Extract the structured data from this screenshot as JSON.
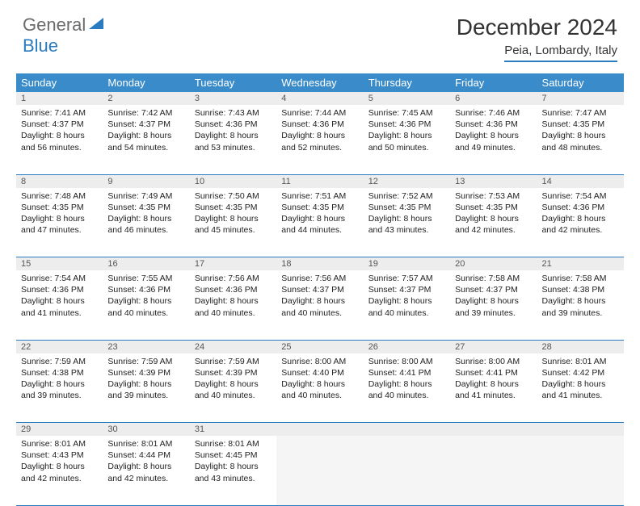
{
  "logo": {
    "text1": "General",
    "text2": "Blue"
  },
  "title": "December 2024",
  "location": "Peia, Lombardy, Italy",
  "colors": {
    "header_bg": "#3a8bc9",
    "accent": "#2a7bbf",
    "daynum_bg": "#ededed",
    "logo_gray": "#6b6b6b"
  },
  "day_headers": [
    "Sunday",
    "Monday",
    "Tuesday",
    "Wednesday",
    "Thursday",
    "Friday",
    "Saturday"
  ],
  "weeks": [
    [
      {
        "n": "1",
        "sr": "7:41 AM",
        "ss": "4:37 PM",
        "dl": "8 hours and 56 minutes."
      },
      {
        "n": "2",
        "sr": "7:42 AM",
        "ss": "4:37 PM",
        "dl": "8 hours and 54 minutes."
      },
      {
        "n": "3",
        "sr": "7:43 AM",
        "ss": "4:36 PM",
        "dl": "8 hours and 53 minutes."
      },
      {
        "n": "4",
        "sr": "7:44 AM",
        "ss": "4:36 PM",
        "dl": "8 hours and 52 minutes."
      },
      {
        "n": "5",
        "sr": "7:45 AM",
        "ss": "4:36 PM",
        "dl": "8 hours and 50 minutes."
      },
      {
        "n": "6",
        "sr": "7:46 AM",
        "ss": "4:36 PM",
        "dl": "8 hours and 49 minutes."
      },
      {
        "n": "7",
        "sr": "7:47 AM",
        "ss": "4:35 PM",
        "dl": "8 hours and 48 minutes."
      }
    ],
    [
      {
        "n": "8",
        "sr": "7:48 AM",
        "ss": "4:35 PM",
        "dl": "8 hours and 47 minutes."
      },
      {
        "n": "9",
        "sr": "7:49 AM",
        "ss": "4:35 PM",
        "dl": "8 hours and 46 minutes."
      },
      {
        "n": "10",
        "sr": "7:50 AM",
        "ss": "4:35 PM",
        "dl": "8 hours and 45 minutes."
      },
      {
        "n": "11",
        "sr": "7:51 AM",
        "ss": "4:35 PM",
        "dl": "8 hours and 44 minutes."
      },
      {
        "n": "12",
        "sr": "7:52 AM",
        "ss": "4:35 PM",
        "dl": "8 hours and 43 minutes."
      },
      {
        "n": "13",
        "sr": "7:53 AM",
        "ss": "4:35 PM",
        "dl": "8 hours and 42 minutes."
      },
      {
        "n": "14",
        "sr": "7:54 AM",
        "ss": "4:36 PM",
        "dl": "8 hours and 42 minutes."
      }
    ],
    [
      {
        "n": "15",
        "sr": "7:54 AM",
        "ss": "4:36 PM",
        "dl": "8 hours and 41 minutes."
      },
      {
        "n": "16",
        "sr": "7:55 AM",
        "ss": "4:36 PM",
        "dl": "8 hours and 40 minutes."
      },
      {
        "n": "17",
        "sr": "7:56 AM",
        "ss": "4:36 PM",
        "dl": "8 hours and 40 minutes."
      },
      {
        "n": "18",
        "sr": "7:56 AM",
        "ss": "4:37 PM",
        "dl": "8 hours and 40 minutes."
      },
      {
        "n": "19",
        "sr": "7:57 AM",
        "ss": "4:37 PM",
        "dl": "8 hours and 40 minutes."
      },
      {
        "n": "20",
        "sr": "7:58 AM",
        "ss": "4:37 PM",
        "dl": "8 hours and 39 minutes."
      },
      {
        "n": "21",
        "sr": "7:58 AM",
        "ss": "4:38 PM",
        "dl": "8 hours and 39 minutes."
      }
    ],
    [
      {
        "n": "22",
        "sr": "7:59 AM",
        "ss": "4:38 PM",
        "dl": "8 hours and 39 minutes."
      },
      {
        "n": "23",
        "sr": "7:59 AM",
        "ss": "4:39 PM",
        "dl": "8 hours and 39 minutes."
      },
      {
        "n": "24",
        "sr": "7:59 AM",
        "ss": "4:39 PM",
        "dl": "8 hours and 40 minutes."
      },
      {
        "n": "25",
        "sr": "8:00 AM",
        "ss": "4:40 PM",
        "dl": "8 hours and 40 minutes."
      },
      {
        "n": "26",
        "sr": "8:00 AM",
        "ss": "4:41 PM",
        "dl": "8 hours and 40 minutes."
      },
      {
        "n": "27",
        "sr": "8:00 AM",
        "ss": "4:41 PM",
        "dl": "8 hours and 41 minutes."
      },
      {
        "n": "28",
        "sr": "8:01 AM",
        "ss": "4:42 PM",
        "dl": "8 hours and 41 minutes."
      }
    ],
    [
      {
        "n": "29",
        "sr": "8:01 AM",
        "ss": "4:43 PM",
        "dl": "8 hours and 42 minutes."
      },
      {
        "n": "30",
        "sr": "8:01 AM",
        "ss": "4:44 PM",
        "dl": "8 hours and 42 minutes."
      },
      {
        "n": "31",
        "sr": "8:01 AM",
        "ss": "4:45 PM",
        "dl": "8 hours and 43 minutes."
      },
      null,
      null,
      null,
      null
    ]
  ],
  "labels": {
    "sunrise": "Sunrise:",
    "sunset": "Sunset:",
    "daylight": "Daylight:"
  }
}
